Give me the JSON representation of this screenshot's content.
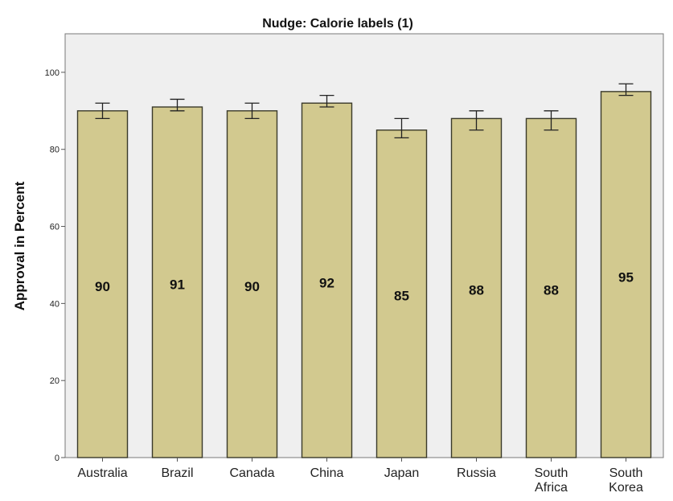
{
  "chart_data": {
    "type": "bar",
    "title": "Nudge: Calorie labels (1)",
    "xlabel": "",
    "ylabel": "Approval in Percent",
    "ylim": [
      0,
      110
    ],
    "yticks": [
      0,
      20,
      40,
      60,
      80,
      100
    ],
    "grid": false,
    "categories": [
      [
        "Australia"
      ],
      [
        "Brazil"
      ],
      [
        "Canada"
      ],
      [
        "China"
      ],
      [
        "Japan"
      ],
      [
        "Russia"
      ],
      [
        "South",
        "Africa"
      ],
      [
        "South",
        "Korea"
      ]
    ],
    "values": [
      90,
      91,
      90,
      92,
      85,
      88,
      88,
      95
    ],
    "value_labels": [
      "90",
      "91",
      "90",
      "92",
      "85",
      "88",
      "88",
      "95"
    ],
    "error_bars": [
      [
        88,
        92
      ],
      [
        90,
        93
      ],
      [
        88,
        92
      ],
      [
        91,
        94
      ],
      [
        83,
        88
      ],
      [
        85,
        90
      ],
      [
        85,
        90
      ],
      [
        94,
        97
      ]
    ],
    "colors": {
      "bar_fill": "#d2c98f",
      "bar_stroke": "#3a3a2a",
      "plot_background": "#efefef",
      "error_bar": "#222222"
    }
  }
}
